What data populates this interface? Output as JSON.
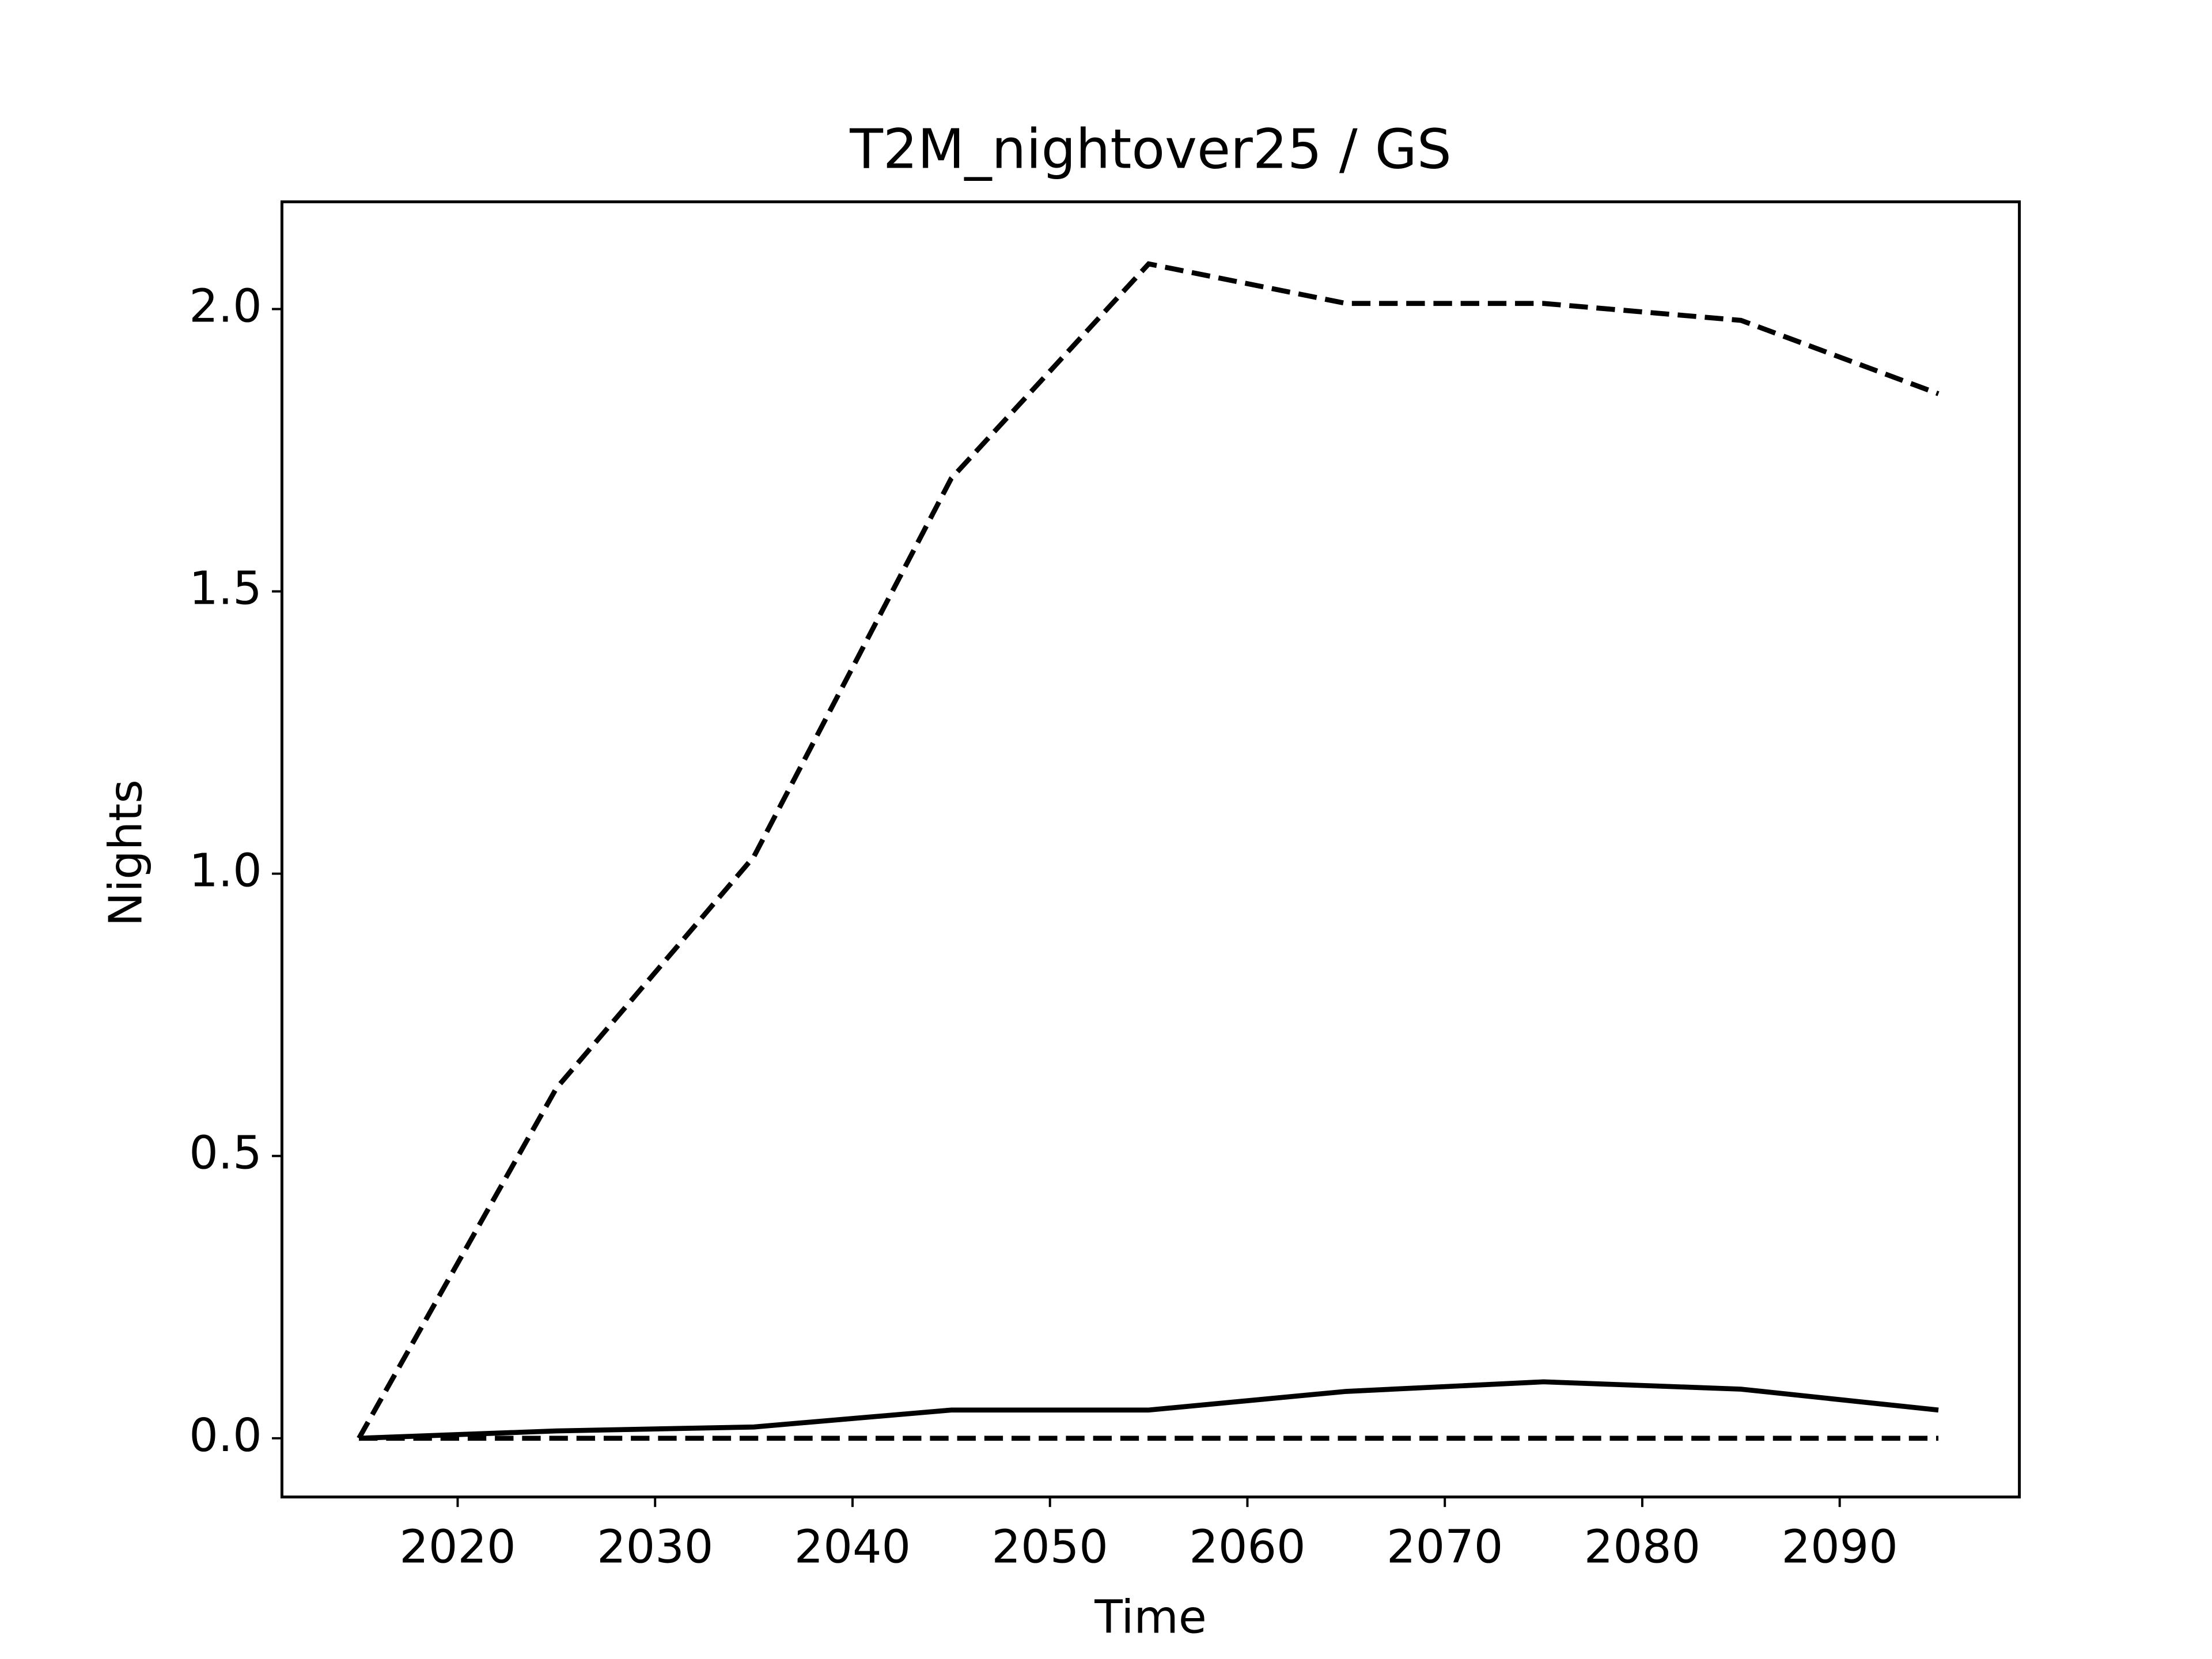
{
  "chart_data": {
    "type": "line",
    "title": "T2M_nightover25 / GS",
    "xlabel": "Time",
    "ylabel": "Nights",
    "x": [
      2015,
      2025,
      2035,
      2045,
      2055,
      2065,
      2075,
      2085,
      2095
    ],
    "series": [
      {
        "color": "#000000",
        "dashed": true,
        "values": [
          0,
          0.62,
          1.03,
          1.7,
          2.08,
          2.01,
          2.01,
          1.98,
          1.85
        ]
      },
      {
        "color": "#000000",
        "dashed": false,
        "values": [
          0,
          0.013,
          0.02,
          0.05,
          0.05,
          0.083,
          0.1,
          0.087,
          0.05
        ]
      },
      {
        "color": "#000000",
        "dashed": true,
        "values": [
          0,
          0,
          0,
          0,
          0,
          0,
          0,
          0,
          0
        ]
      }
    ],
    "xlim": [
      2011.1,
      2099.1
    ],
    "xticks": [
      2020,
      2030,
      2040,
      2050,
      2060,
      2070,
      2080,
      2090
    ],
    "ylim": [
      -0.104,
      2.19
    ],
    "yticks": [
      {
        "value": 0,
        "label": "0.0"
      },
      {
        "value": 0.5,
        "label": "0.5"
      },
      {
        "value": 1,
        "label": "1.0"
      },
      {
        "value": 1.5,
        "label": "1.5"
      },
      {
        "value": 2,
        "label": "2.0"
      }
    ],
    "grid": false
  }
}
